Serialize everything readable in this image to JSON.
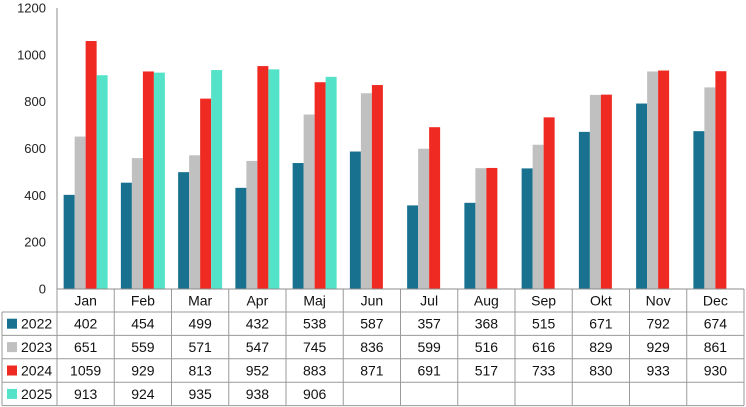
{
  "chart_data": {
    "type": "bar",
    "title": "",
    "xlabel": "",
    "ylabel": "",
    "ylim": [
      0,
      1200
    ],
    "yticks": [
      0,
      200,
      400,
      600,
      800,
      1000,
      1200
    ],
    "categories": [
      "Jan",
      "Feb",
      "Mar",
      "Apr",
      "Maj",
      "Jun",
      "Jul",
      "Aug",
      "Sep",
      "Okt",
      "Nov",
      "Dec"
    ],
    "grid": false,
    "legend": "data-table-left",
    "series": [
      {
        "name": "2022",
        "color": "#17718f",
        "values": [
          402,
          454,
          499,
          432,
          538,
          587,
          357,
          368,
          515,
          671,
          792,
          674
        ]
      },
      {
        "name": "2023",
        "color": "#c0c0c0",
        "values": [
          651,
          559,
          571,
          547,
          745,
          836,
          599,
          516,
          616,
          829,
          929,
          861
        ]
      },
      {
        "name": "2024",
        "color": "#ee2a22",
        "values": [
          1059,
          929,
          813,
          952,
          883,
          871,
          691,
          517,
          733,
          830,
          933,
          930
        ]
      },
      {
        "name": "2025",
        "color": "#54e3c9",
        "values": [
          913,
          924,
          935,
          938,
          906,
          null,
          null,
          null,
          null,
          null,
          null,
          null
        ]
      }
    ]
  }
}
